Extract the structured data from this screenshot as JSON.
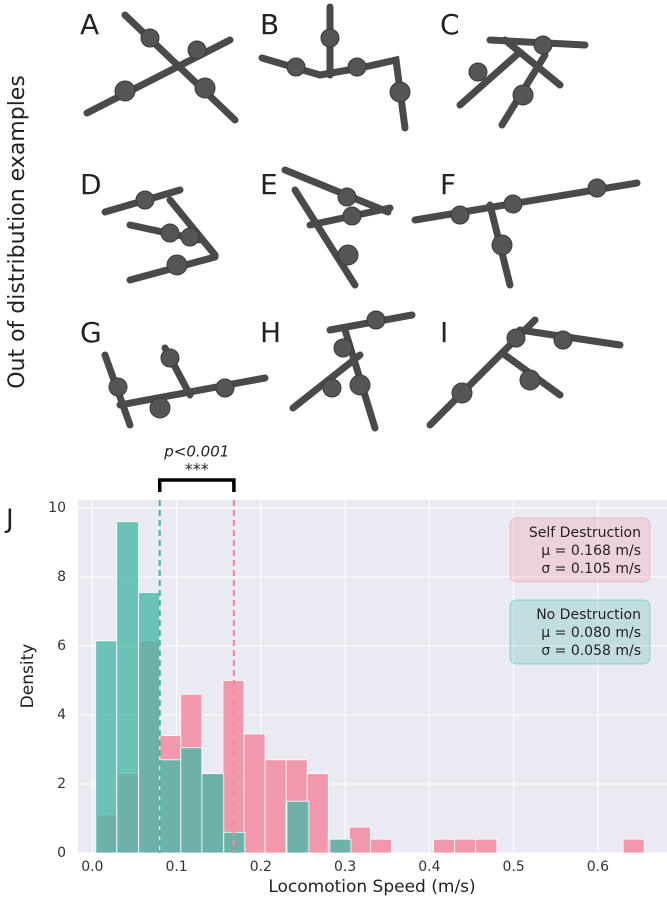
{
  "figure_label": "Out of distribution examples",
  "panels": [
    "A",
    "B",
    "C",
    "D",
    "E",
    "F",
    "G",
    "H",
    "I"
  ],
  "chart_data": {
    "type": "histogram",
    "panel_label": "J",
    "xlabel": "Locomotion Speed (m/s)",
    "ylabel": "Density",
    "xlim": [
      -0.017,
      0.682
    ],
    "ylim": [
      0,
      10.23
    ],
    "xticks": [
      {
        "value": 0,
        "label": "0.0"
      },
      0.1,
      0.2,
      0.3,
      0.4,
      0.5,
      0.6
    ],
    "yticks": [
      0,
      2,
      4,
      6,
      8,
      10
    ],
    "grid": true,
    "series": [
      {
        "name": "Self Destruction",
        "color": "#f28aa0",
        "mean": 0.168,
        "mean_label": "μ = 0.168 m/s",
        "sd_label": "σ = 0.105 m/s",
        "bins": [
          0.005,
          0.03,
          0.055,
          0.08,
          0.105,
          0.13,
          0.155,
          0.18,
          0.205,
          0.23,
          0.255,
          0.28,
          0.305,
          0.33,
          0.355,
          0.38,
          0.405,
          0.43,
          0.455,
          0.48,
          0.505,
          0.53,
          0.555,
          0.58,
          0.605,
          0.63,
          0.655
        ],
        "values": [
          1.1,
          2.3,
          6.15,
          3.4,
          4.6,
          2.3,
          5.0,
          3.45,
          2.7,
          2.7,
          2.3,
          0.4,
          0.75,
          0.4,
          0,
          0,
          0.4,
          0.4,
          0.4,
          0,
          0,
          0,
          0,
          0,
          0,
          0.4
        ]
      },
      {
        "name": "No Destruction",
        "color": "#4cb8a8",
        "mean": 0.08,
        "mean_label": "μ = 0.080 m/s",
        "sd_label": "σ = 0.058 m/s",
        "bins": [
          0.004,
          0.029,
          0.055,
          0.08,
          0.105,
          0.13,
          0.156,
          0.181,
          0.206,
          0.231,
          0.257,
          0.282,
          0.307
        ],
        "values": [
          6.15,
          9.6,
          7.55,
          2.7,
          3.05,
          2.3,
          0.6,
          0,
          0,
          1.5,
          0,
          0.4
        ]
      }
    ],
    "significance": {
      "p_label": "p<0.001",
      "stars": "***"
    }
  }
}
